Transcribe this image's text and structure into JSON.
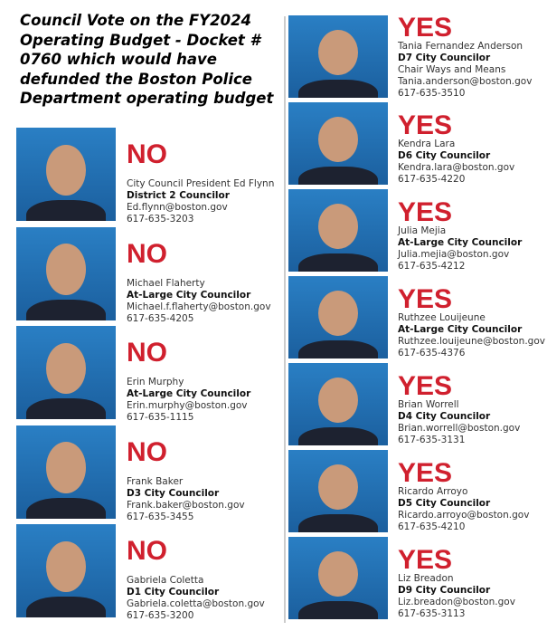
{
  "title": "Council Vote on the FY2024 Operating Budget - Docket # 0760  which would have defunded the Boston Police Department operating budget",
  "colors": {
    "vote": "#d0202e",
    "photo_bg": "#2a7fc4"
  },
  "left": [
    {
      "vote": "NO",
      "name": "City Council President Ed Flynn",
      "role": "District 2 Councilor",
      "email": "Ed.flynn@boston.gov",
      "phone": "617-635-3203"
    },
    {
      "vote": "NO",
      "name": "Michael Flaherty",
      "role": "At-Large City Councilor",
      "email": "Michael.f.flaherty@boston.gov",
      "phone": "617-635-4205"
    },
    {
      "vote": "NO",
      "name": "Erin Murphy",
      "role": "At-Large City Councilor",
      "email": "Erin.murphy@boston.gov",
      "phone": "617-635-1115"
    },
    {
      "vote": "NO",
      "name": "Frank Baker",
      "role": "D3 City Councilor",
      "email": "Frank.baker@boston.gov",
      "phone": "617-635-3455"
    },
    {
      "vote": "NO",
      "name": "Gabriela  Coletta",
      "role": "D1 City Councilor",
      "email": "Gabriela.coletta@boston.gov",
      "phone": "617-635-3200"
    }
  ],
  "right": [
    {
      "vote": "YES",
      "name": "Tania Fernandez Anderson",
      "role": "D7 City Councilor",
      "extra": "Chair Ways and Means",
      "email": "Tania.anderson@boston.gov",
      "phone": "617-635-3510"
    },
    {
      "vote": "YES",
      "name": "Kendra Lara",
      "role": "D6 City Councilor",
      "email": "Kendra.lara@boston.gov",
      "phone": "617-635-4220"
    },
    {
      "vote": "YES",
      "name": "Julia Mejia",
      "role": "At-Large City Councilor",
      "email": "Julia.mejia@boston.gov",
      "phone": "617-635-4212"
    },
    {
      "vote": "YES",
      "name": "Ruthzee Louijeune",
      "role": "At-Large City Councilor",
      "email": "Ruthzee.louijeune@boston.gov",
      "phone": "617-635-4376"
    },
    {
      "vote": "YES",
      "name": "Brian Worrell",
      "role": "D4 City Councilor",
      "email": "Brian.worrell@boston.gov",
      "phone": "617-635-3131"
    },
    {
      "vote": "YES",
      "name": "Ricardo Arroyo",
      "role": "D5 City Councilor",
      "email": "Ricardo.arroyo@boston.gov",
      "phone": "617-635-4210"
    },
    {
      "vote": "YES",
      "name": "Liz Breadon",
      "role": "D9 City Councilor",
      "email": "Liz.breadon@boston.gov",
      "phone": "617-635-3113"
    }
  ]
}
